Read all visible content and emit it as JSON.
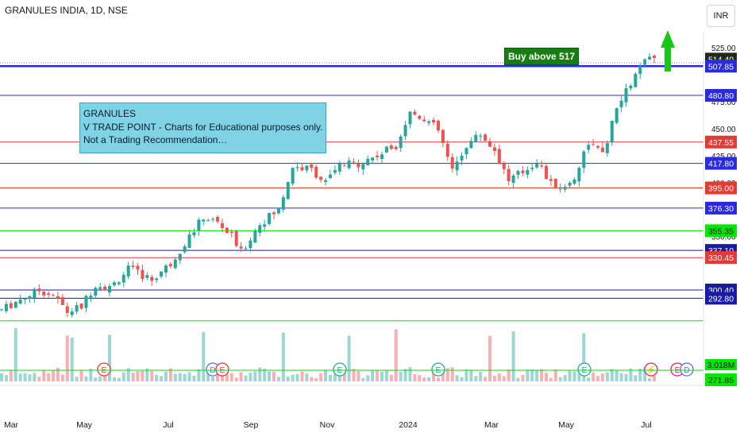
{
  "header": {
    "symbol": "GRANULES INDIA, 1D, NSE",
    "currency": "INR"
  },
  "note": {
    "line1": "GRANULES",
    "line2": "V TRADE POINT - Charts for Educational purposes only.",
    "line3": "Not a Trading Recommendation…"
  },
  "callout": {
    "text": "Buy above 517",
    "color": "#15800f"
  },
  "chart_data": {
    "type": "candlestick",
    "title": "",
    "x_ticks": [
      "Mar",
      "May",
      "Jul",
      "Sep",
      "Nov",
      "2024",
      "Mar",
      "May",
      "Jul"
    ],
    "y_ticks": [
      "525.00",
      "475.00",
      "450.00",
      "425.00",
      "400.00",
      "350.00"
    ],
    "ylim": [
      265,
      545
    ],
    "grid": false,
    "levels": [
      {
        "price": 514.4,
        "label": "514.40",
        "color": "#131722",
        "kind": "last"
      },
      {
        "price": 507.85,
        "label": "507.85",
        "color": "#2a2ae0",
        "kind": "line"
      },
      {
        "price": 480.8,
        "label": "480.80",
        "color": "#2a2ae0",
        "kind": "line"
      },
      {
        "price": 437.55,
        "label": "437.55",
        "color": "#e53935",
        "kind": "line"
      },
      {
        "price": 417.8,
        "label": "417.80",
        "color": "#2a2ae0",
        "kind": "line"
      },
      {
        "price": 395.0,
        "label": "395.00",
        "color": "#e53935",
        "kind": "line"
      },
      {
        "price": 376.3,
        "label": "376.30",
        "color": "#2a2ae0",
        "kind": "line"
      },
      {
        "price": 355.35,
        "label": "355.35",
        "color": "#00e600",
        "kind": "line"
      },
      {
        "price": 337.1,
        "label": "337.10",
        "color": "#1a1aa8",
        "kind": "line"
      },
      {
        "price": 330.45,
        "label": "330.45",
        "color": "#e53935",
        "kind": "line"
      },
      {
        "price": 300.4,
        "label": "300.40",
        "color": "#1a1aa8",
        "kind": "line"
      },
      {
        "price": 292.8,
        "label": "292.80",
        "color": "#1a1aa8",
        "kind": "line"
      },
      {
        "price": 271.85,
        "label": "271.85",
        "color": "#00e600",
        "kind": "line"
      }
    ],
    "volume_label": "3.018M",
    "events": [
      "E",
      "D",
      "E",
      "E",
      "E",
      "E",
      "⚡",
      "E",
      "D"
    ],
    "price_path": [
      [
        0,
        282
      ],
      [
        4,
        292
      ],
      [
        8,
        300
      ],
      [
        11,
        296
      ],
      [
        14,
        280
      ],
      [
        17,
        285
      ],
      [
        20,
        306
      ],
      [
        23,
        302
      ],
      [
        27,
        320
      ],
      [
        32,
        310
      ],
      [
        36,
        325
      ],
      [
        39,
        344
      ],
      [
        43,
        368
      ],
      [
        46,
        363
      ],
      [
        49,
        350
      ],
      [
        51,
        335
      ],
      [
        55,
        362
      ],
      [
        59,
        375
      ],
      [
        62,
        415
      ],
      [
        66,
        412
      ],
      [
        69,
        400
      ],
      [
        72,
        415
      ],
      [
        76,
        418
      ],
      [
        80,
        425
      ],
      [
        84,
        435
      ],
      [
        87,
        465
      ],
      [
        90,
        460
      ],
      [
        93,
        448
      ],
      [
        96,
        410
      ],
      [
        99,
        435
      ],
      [
        102,
        445
      ],
      [
        105,
        430
      ],
      [
        108,
        402
      ],
      [
        111,
        410
      ],
      [
        114,
        420
      ],
      [
        117,
        398
      ],
      [
        120,
        395
      ],
      [
        122,
        405
      ],
      [
        125,
        438
      ],
      [
        128,
        425
      ],
      [
        131,
        468
      ],
      [
        134,
        492
      ],
      [
        137,
        512
      ],
      [
        139,
        514.4
      ]
    ],
    "colors": {
      "up": "#26a69a",
      "down": "#ef5350"
    }
  }
}
